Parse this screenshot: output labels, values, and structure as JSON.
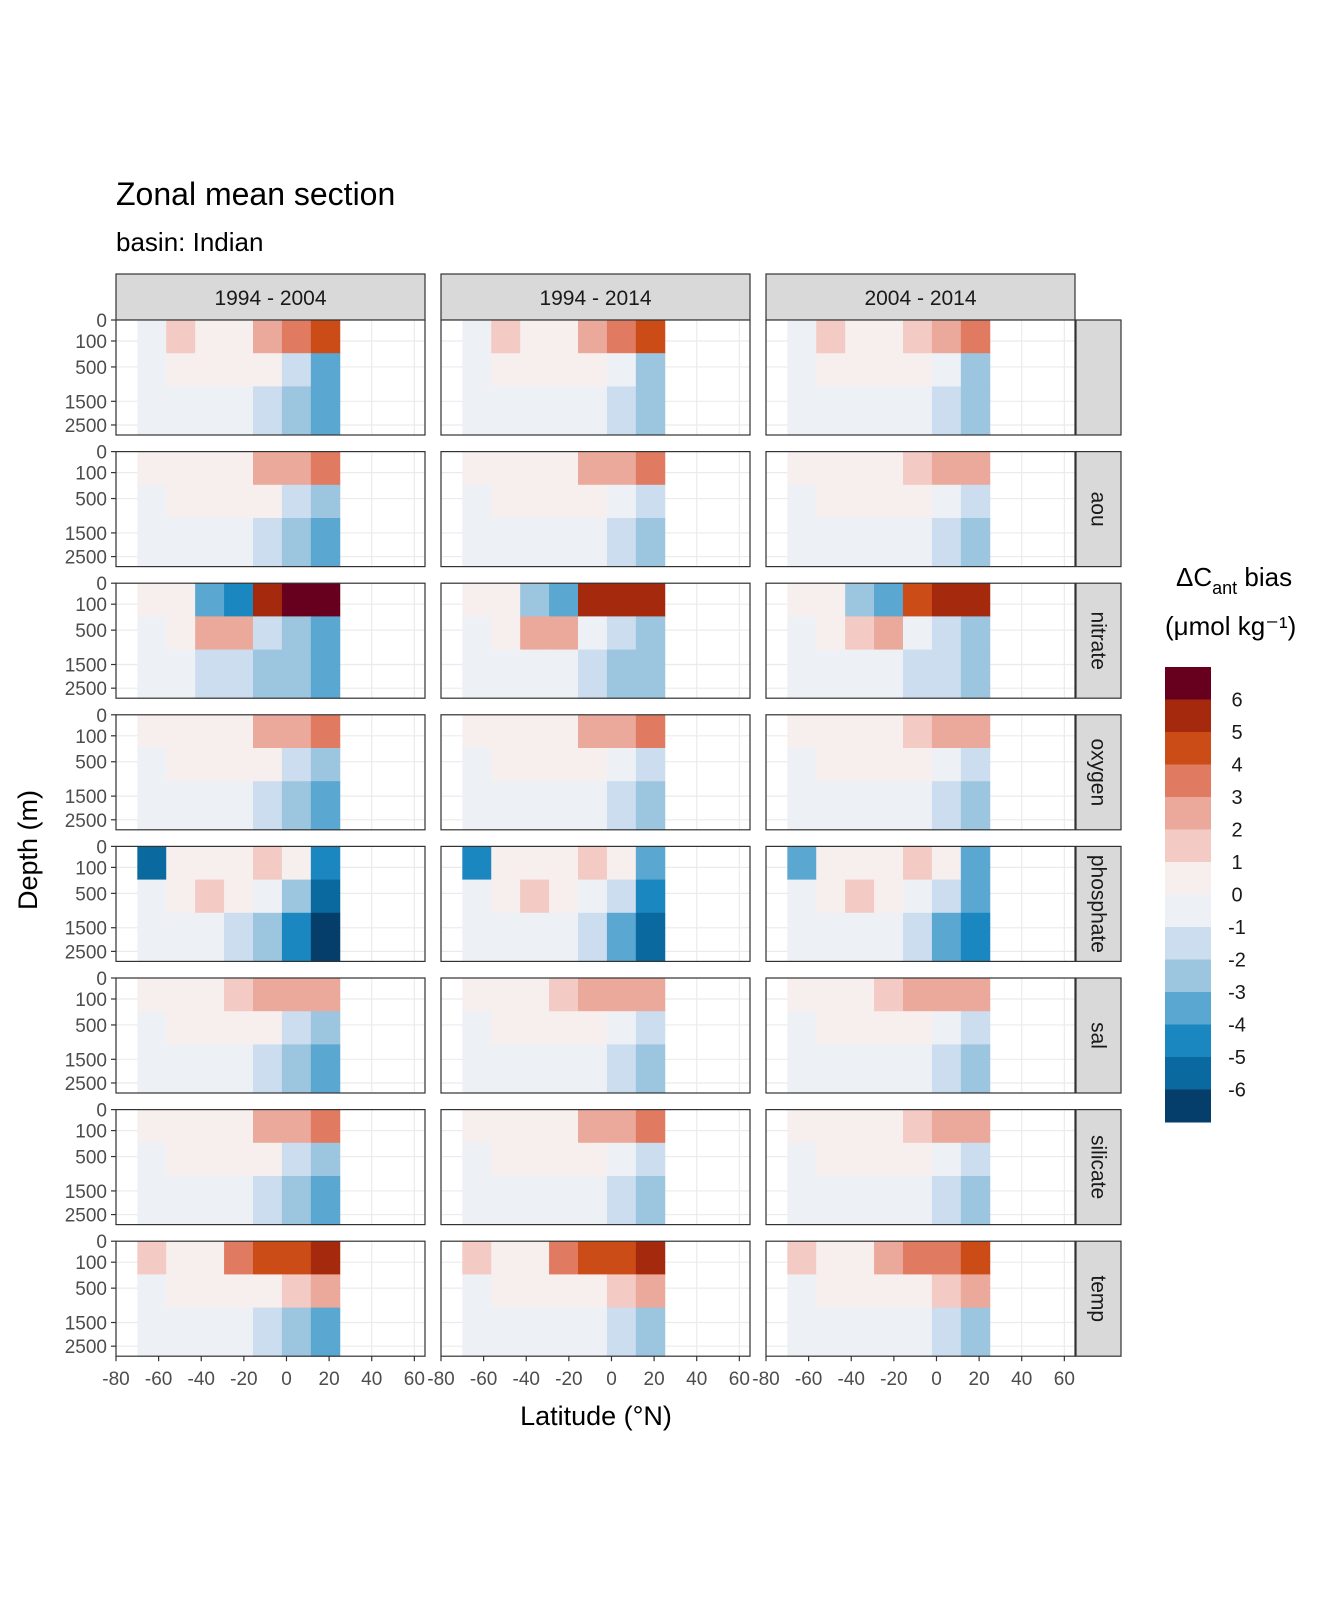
{
  "chart_data": {
    "type": "heatmap",
    "title": "Zonal mean section",
    "subtitle": "basin: Indian",
    "xlabel": "Latitude (°N)",
    "ylabel": "Depth (m)",
    "col_facets": [
      "1994 - 2004",
      "1994 - 2014",
      "2004 - 2014"
    ],
    "row_facets": [
      "",
      "aou",
      "nitrate",
      "oxygen",
      "phosphate",
      "sal",
      "silicate",
      "temp"
    ],
    "x_ticks": [
      "-80",
      "-60",
      "-40",
      "-20",
      "0",
      "20",
      "40",
      "60"
    ],
    "x_tick_values": [
      -80,
      -60,
      -40,
      -20,
      0,
      20,
      40,
      60
    ],
    "xlim": [
      -80,
      65
    ],
    "y_ticks": [
      "0",
      "100",
      "500",
      "1500",
      "2500"
    ],
    "y_tick_values": [
      0,
      100,
      500,
      1500,
      2500
    ],
    "ylim": [
      3000,
      0
    ],
    "y_scale": "reversed, square-root",
    "data_lat_range": [
      -70,
      25
    ],
    "grid": true,
    "legend": {
      "title": "ΔCant bias",
      "title_sub": "ant",
      "unit": "(μmol kg⁻¹)",
      "position": "right",
      "labels": [
        "6",
        "5",
        "4",
        "3",
        "2",
        "1",
        "0",
        "-1",
        "-2",
        "-3",
        "-4",
        "-5",
        "-6"
      ],
      "colors": [
        "#67001f",
        "#a52a0d",
        "#cc4c18",
        "#e07a60",
        "#eba99b",
        "#f3cac4",
        "#f7eeee",
        "#edf1f6",
        "#cbddee",
        "#9cc5df",
        "#5aa7d1",
        "#1a87c0",
        "#0a6aa0",
        "#063e6b"
      ]
    },
    "series": [
      {
        "name": "",
        "values": [
          [
            0,
            1.5,
            1,
            0.5,
            2.5,
            4,
            5
          ],
          [
            -0.5,
            0.5,
            0.8,
            1,
            0.5,
            -1,
            -3
          ],
          [
            -0.5,
            -0.5,
            0,
            0,
            -1,
            -2,
            -3
          ]
        ]
      },
      {
        "name": "aou",
        "values": [
          [
            0.5,
            1,
            0.5,
            1,
            2.5,
            3,
            4
          ],
          [
            -0.5,
            0.5,
            1,
            1,
            0.5,
            -1,
            -2
          ],
          [
            -0.5,
            -0.5,
            0,
            -0.5,
            -1,
            -2,
            -3
          ]
        ]
      },
      {
        "name": "nitrate",
        "values": [
          [
            1,
            0.5,
            -3,
            -4,
            6,
            7,
            7
          ],
          [
            -0.5,
            1,
            2.5,
            3,
            -1,
            -2,
            -3
          ],
          [
            -0.5,
            -0.5,
            -1,
            -1,
            -2,
            -2.5,
            -3
          ]
        ]
      },
      {
        "name": "oxygen",
        "values": [
          [
            0.5,
            1,
            0.5,
            1,
            2.5,
            3,
            4
          ],
          [
            -0.5,
            0.5,
            1,
            1,
            0.5,
            -1,
            -2
          ],
          [
            -0.5,
            -0.5,
            0,
            -0.5,
            -1,
            -2,
            -3
          ]
        ]
      },
      {
        "name": "phosphate",
        "values": [
          [
            -5,
            1,
            1,
            1,
            2,
            1,
            -4
          ],
          [
            -0.5,
            0.5,
            1.5,
            1,
            0,
            -2,
            -5
          ],
          [
            -0.5,
            -0.5,
            -0.5,
            -1,
            -2,
            -4,
            -6
          ]
        ]
      },
      {
        "name": "sal",
        "values": [
          [
            0.5,
            1,
            0.5,
            1.5,
            3,
            3,
            3
          ],
          [
            -0.5,
            0.5,
            1,
            1,
            0.5,
            -1,
            -2
          ],
          [
            -0.5,
            -0.5,
            0,
            -0.5,
            -1,
            -2,
            -3
          ]
        ]
      },
      {
        "name": "silicate",
        "values": [
          [
            0.5,
            1,
            0.5,
            1,
            2.5,
            3,
            4
          ],
          [
            -0.5,
            0.5,
            1,
            1,
            0.5,
            -1,
            -2
          ],
          [
            -0.5,
            -0.5,
            0,
            -0.5,
            -1,
            -2,
            -3
          ]
        ]
      },
      {
        "name": "temp",
        "values": [
          [
            1.5,
            1,
            0.5,
            4,
            5,
            5,
            6
          ],
          [
            -0.5,
            0.5,
            1,
            1,
            1,
            2,
            3
          ],
          [
            -0.5,
            -0.5,
            0,
            -0.5,
            -1,
            -2,
            -3
          ]
        ]
      }
    ]
  }
}
